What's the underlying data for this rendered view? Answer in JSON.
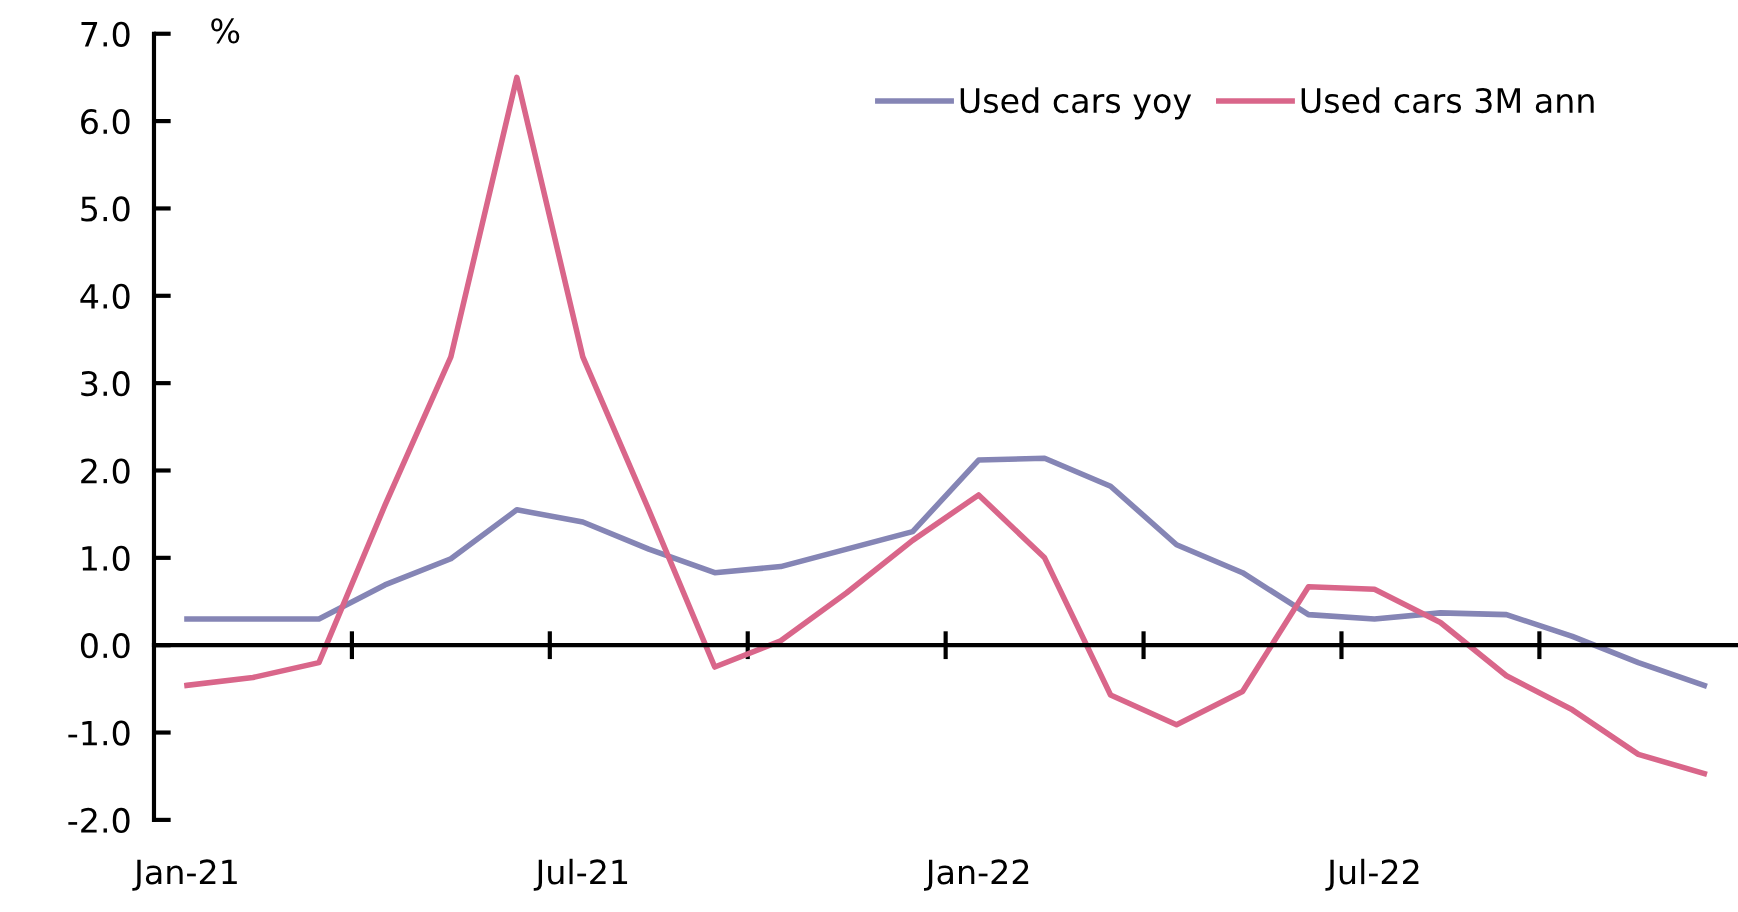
{
  "chart_data": {
    "type": "line",
    "ylabel": "%",
    "categories": [
      "Jan-21",
      null,
      null,
      null,
      null,
      null,
      "Jul-21",
      null,
      null,
      null,
      null,
      null,
      "Jan-22",
      null,
      null,
      null,
      null,
      null,
      "Jul-22",
      null,
      null,
      null,
      null,
      null
    ],
    "series": [
      {
        "name": "Used cars yoy",
        "color": "#8585b5",
        "values": [
          0.3,
          0.3,
          0.3,
          0.69,
          0.99,
          1.55,
          1.41,
          1.1,
          0.83,
          0.9,
          1.1,
          1.3,
          2.12,
          2.14,
          1.82,
          1.15,
          0.83,
          0.35,
          0.3,
          0.37,
          0.35,
          0.1,
          -0.2,
          -0.46
        ]
      },
      {
        "name": "Used cars 3M ann",
        "color": "#d9668a",
        "values": [
          -0.46,
          -0.37,
          -0.2,
          1.6,
          3.3,
          6.5,
          3.3,
          1.55,
          -0.25,
          0.05,
          0.6,
          1.2,
          1.72,
          1.0,
          -0.57,
          -0.91,
          -0.53,
          0.67,
          0.64,
          0.26,
          -0.35,
          -0.74,
          -1.25,
          -1.47
        ]
      }
    ],
    "ylim": [
      -2,
      7
    ],
    "yticks": [
      {
        "value": -2,
        "label": "-2.0"
      },
      {
        "value": -1,
        "label": "-1.0"
      },
      {
        "value": 0,
        "label": "0.0"
      },
      {
        "value": 1,
        "label": "1.0"
      },
      {
        "value": 2,
        "label": "2.0"
      },
      {
        "value": 3,
        "label": "3.0"
      },
      {
        "value": 4,
        "label": "4.0"
      },
      {
        "value": 5,
        "label": "5.0"
      },
      {
        "value": 6,
        "label": "6.0"
      },
      {
        "value": 7,
        "label": "7.0"
      }
    ],
    "legend": "top right",
    "marker": "none",
    "line_style": "solid"
  }
}
